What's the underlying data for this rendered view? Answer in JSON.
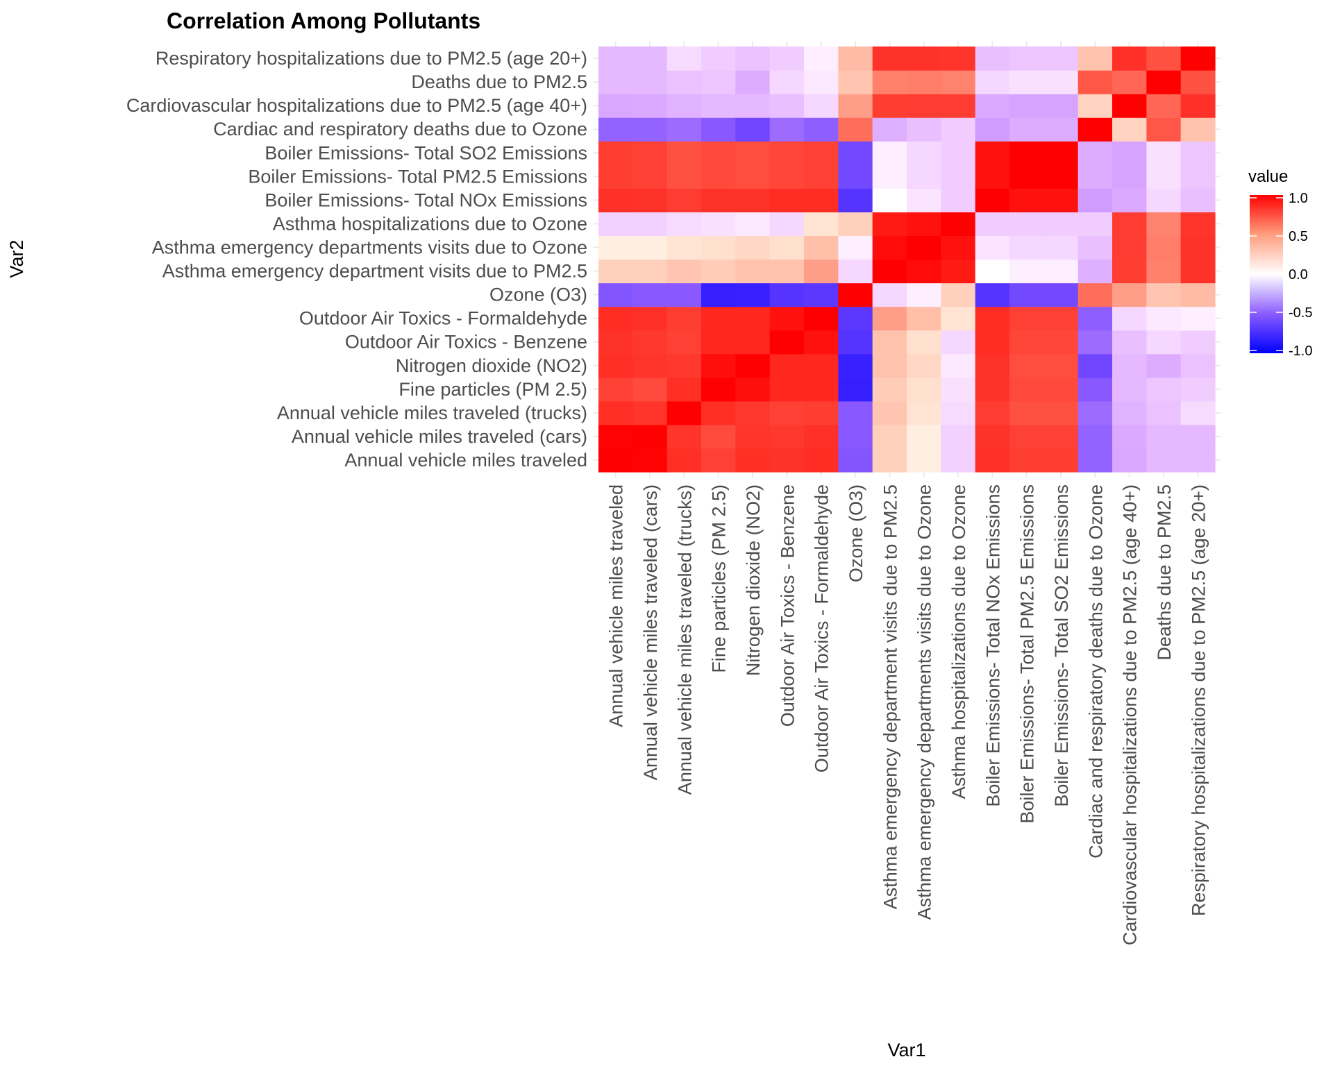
{
  "chart_data": {
    "type": "heatmap",
    "title": "Correlation Among Pollutants",
    "xlabel": "Var1",
    "ylabel": "Var2",
    "variables": [
      "Annual vehicle miles traveled",
      "Annual vehicle miles traveled (cars)",
      "Annual vehicle miles traveled (trucks)",
      "Fine particles (PM 2.5)",
      "Nitrogen dioxide (NO2)",
      "Outdoor Air Toxics - Benzene",
      "Outdoor Air Toxics - Formaldehyde",
      "Ozone (O3)",
      "Asthma emergency department visits due to PM2.5",
      "Asthma emergency departments visits due to Ozone",
      "Asthma hospitalizations due to Ozone",
      "Boiler Emissions- Total NOx Emissions",
      "Boiler Emissions- Total PM2.5 Emissions",
      "Boiler Emissions- Total SO2 Emissions",
      "Cardiac and respiratory deaths due to Ozone",
      "Cardiovascular hospitalizations due to PM2.5 (age 40+)",
      "Deaths due to PM2.5",
      "Respiratory hospitalizations due to PM2.5 (age 20+)"
    ],
    "matrix": [
      [
        1.0,
        0.99,
        0.75,
        0.66,
        0.75,
        0.73,
        0.76,
        -0.56,
        0.09,
        0.02,
        -0.09,
        0.74,
        0.67,
        0.67,
        -0.5,
        -0.22,
        -0.16,
        -0.16
      ],
      [
        0.99,
        1.0,
        0.72,
        0.61,
        0.72,
        0.7,
        0.74,
        -0.54,
        0.09,
        0.02,
        -0.09,
        0.73,
        0.66,
        0.66,
        -0.5,
        -0.21,
        -0.16,
        -0.16
      ],
      [
        0.75,
        0.72,
        1.0,
        0.75,
        0.7,
        0.66,
        0.67,
        -0.54,
        0.12,
        0.04,
        -0.06,
        0.68,
        0.58,
        0.58,
        -0.46,
        -0.18,
        -0.13,
        -0.06
      ],
      [
        0.66,
        0.61,
        0.75,
        1.0,
        0.92,
        0.79,
        0.79,
        -0.83,
        0.1,
        0.05,
        -0.05,
        0.73,
        0.62,
        0.62,
        -0.54,
        -0.16,
        -0.12,
        -0.1
      ],
      [
        0.75,
        0.72,
        0.7,
        0.92,
        1.0,
        0.79,
        0.79,
        -0.82,
        0.13,
        0.07,
        -0.03,
        0.73,
        0.6,
        0.6,
        -0.63,
        -0.16,
        -0.2,
        -0.13
      ],
      [
        0.73,
        0.7,
        0.66,
        0.79,
        0.79,
        1.0,
        0.9,
        -0.72,
        0.13,
        0.05,
        -0.07,
        0.76,
        0.63,
        0.63,
        -0.46,
        -0.14,
        -0.07,
        -0.1
      ],
      [
        0.76,
        0.74,
        0.67,
        0.79,
        0.79,
        0.9,
        1.0,
        -0.7,
        0.25,
        0.14,
        0.04,
        0.76,
        0.66,
        0.66,
        -0.52,
        -0.07,
        -0.03,
        -0.02
      ],
      [
        -0.56,
        -0.54,
        -0.54,
        -0.83,
        -0.82,
        -0.72,
        -0.7,
        1.0,
        -0.07,
        -0.02,
        0.09,
        -0.72,
        -0.62,
        -0.62,
        0.45,
        0.25,
        0.12,
        0.15
      ],
      [
        0.09,
        0.09,
        0.12,
        0.1,
        0.13,
        0.13,
        0.25,
        -0.07,
        1.0,
        0.94,
        0.86,
        0.0,
        -0.02,
        -0.02,
        -0.19,
        0.67,
        0.37,
        0.73
      ],
      [
        0.02,
        0.02,
        0.04,
        0.05,
        0.07,
        0.05,
        0.14,
        -0.02,
        0.94,
        1.0,
        0.9,
        -0.04,
        -0.07,
        -0.07,
        -0.14,
        0.68,
        0.38,
        0.73
      ],
      [
        -0.09,
        -0.09,
        -0.06,
        -0.05,
        -0.03,
        -0.07,
        0.04,
        0.09,
        0.86,
        0.9,
        1.0,
        -0.1,
        -0.1,
        -0.1,
        -0.1,
        0.68,
        0.36,
        0.72
      ],
      [
        0.74,
        0.73,
        0.68,
        0.73,
        0.73,
        0.76,
        0.76,
        -0.72,
        0.0,
        -0.04,
        -0.1,
        1.0,
        0.9,
        0.9,
        -0.26,
        -0.21,
        -0.07,
        -0.14
      ],
      [
        0.67,
        0.66,
        0.58,
        0.62,
        0.6,
        0.63,
        0.66,
        -0.62,
        -0.02,
        -0.07,
        -0.1,
        0.9,
        1.0,
        1.0,
        -0.2,
        -0.23,
        -0.05,
        -0.12
      ],
      [
        0.67,
        0.66,
        0.58,
        0.62,
        0.6,
        0.63,
        0.66,
        -0.62,
        -0.02,
        -0.07,
        -0.1,
        0.9,
        1.0,
        1.0,
        -0.2,
        -0.23,
        -0.05,
        -0.12
      ],
      [
        -0.5,
        -0.5,
        -0.46,
        -0.54,
        -0.63,
        -0.46,
        -0.52,
        0.45,
        -0.19,
        -0.14,
        -0.1,
        -0.26,
        -0.2,
        -0.2,
        1.0,
        0.08,
        0.55,
        0.13
      ],
      [
        -0.22,
        -0.21,
        -0.18,
        -0.16,
        -0.16,
        -0.14,
        -0.07,
        0.25,
        0.67,
        0.68,
        0.68,
        -0.21,
        -0.23,
        -0.23,
        0.08,
        1.0,
        0.48,
        0.74
      ],
      [
        -0.16,
        -0.16,
        -0.13,
        -0.12,
        -0.2,
        -0.07,
        -0.03,
        0.12,
        0.37,
        0.38,
        0.36,
        -0.07,
        -0.05,
        -0.05,
        0.55,
        0.48,
        1.0,
        0.58
      ],
      [
        -0.16,
        -0.16,
        -0.06,
        -0.1,
        -0.13,
        -0.1,
        -0.02,
        0.15,
        0.73,
        0.73,
        0.72,
        -0.14,
        -0.12,
        -0.12,
        0.13,
        0.74,
        0.58,
        1.0
      ]
    ],
    "color_scale": {
      "low": "#0000ff",
      "mid": "#ffffff",
      "high": "#ff0000",
      "limits": [
        -1,
        1
      ],
      "midpoint": 0
    },
    "legend": {
      "title": "value",
      "position": "right",
      "breaks": [
        1.0,
        0.5,
        0.0,
        -0.5,
        -1.0
      ],
      "labels": [
        "1.0",
        "0.5",
        "0.0",
        "-0.5",
        "-1.0"
      ]
    },
    "grid": true
  }
}
